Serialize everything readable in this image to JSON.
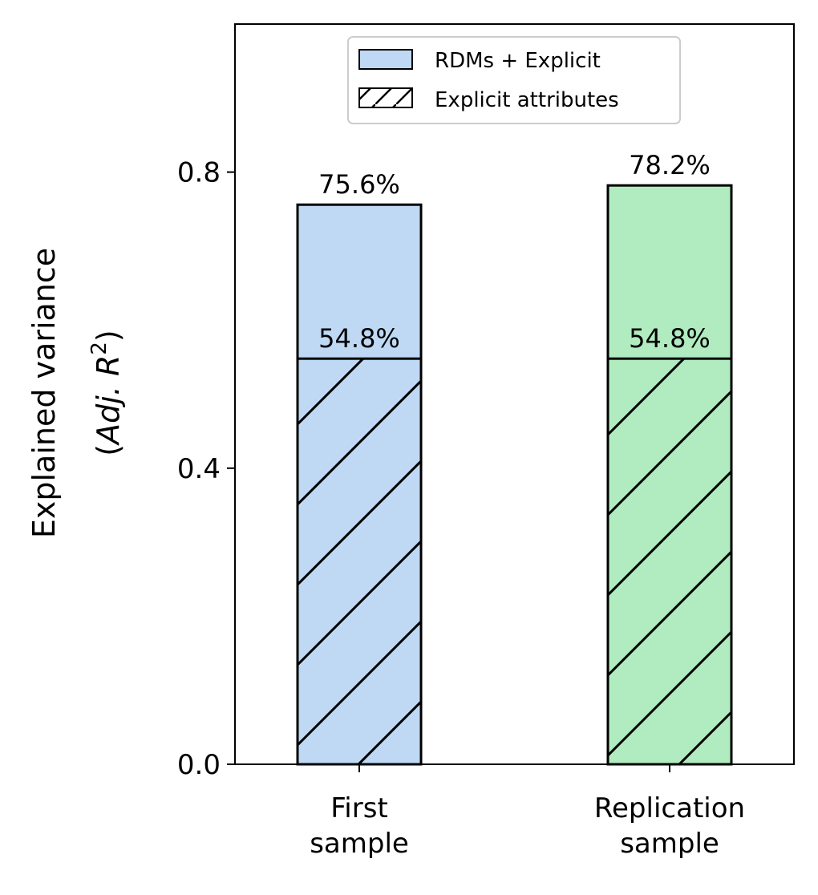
{
  "chart_data": {
    "type": "bar",
    "categories": [
      [
        "First",
        "sample"
      ],
      [
        "Replication",
        "sample"
      ]
    ],
    "series": [
      {
        "name": "RDMs + Explicit",
        "values": [
          0.756,
          0.782
        ],
        "labels": [
          "75.6%",
          "78.2%"
        ],
        "hatch": "none"
      },
      {
        "name": "Explicit attributes",
        "values": [
          0.548,
          0.548
        ],
        "labels": [
          "54.8%",
          "54.8%"
        ],
        "hatch": "diagonal"
      }
    ],
    "bar_colors": [
      "#bfd9f5",
      "#b0ecbf"
    ],
    "ylabel_line1": "Explained variance",
    "ylabel_line2": {
      "open": "(",
      "italic": "Adj. R",
      "sup": "2",
      "close": ")"
    },
    "ylim": [
      0,
      1.0
    ],
    "yticks": [
      0.0,
      0.4,
      0.8
    ],
    "ytick_labels": [
      "0.0",
      "0.4",
      "0.8"
    ],
    "legend_position": "top-center",
    "grid": false
  }
}
